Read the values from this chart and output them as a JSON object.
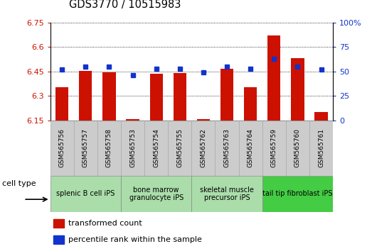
{
  "title": "GDS3770 / 10515983",
  "samples": [
    "GSM565756",
    "GSM565757",
    "GSM565758",
    "GSM565753",
    "GSM565754",
    "GSM565755",
    "GSM565762",
    "GSM565763",
    "GSM565764",
    "GSM565759",
    "GSM565760",
    "GSM565761"
  ],
  "transformed_counts": [
    6.355,
    6.455,
    6.447,
    6.16,
    6.435,
    6.443,
    6.16,
    6.465,
    6.355,
    6.67,
    6.53,
    6.2
  ],
  "percentile_ranks": [
    52,
    55,
    55,
    46,
    53,
    53,
    49,
    55,
    53,
    63,
    55,
    52
  ],
  "cell_type_groups": [
    {
      "label": "splenic B cell iPS",
      "start": 0,
      "end": 3,
      "color": "#aaddaa"
    },
    {
      "label": "bone marrow\ngranulocyte iPS",
      "start": 3,
      "end": 6,
      "color": "#aaddaa"
    },
    {
      "label": "skeletal muscle\nprecursor iPS",
      "start": 6,
      "end": 9,
      "color": "#aaddaa"
    },
    {
      "label": "tail tip fibroblast iPS",
      "start": 9,
      "end": 12,
      "color": "#44cc44"
    }
  ],
  "ylim_left": [
    6.15,
    6.75
  ],
  "ylim_right": [
    0,
    100
  ],
  "yticks_left": [
    6.15,
    6.3,
    6.45,
    6.6,
    6.75
  ],
  "ytick_labels_left": [
    "6.15",
    "6.3",
    "6.45",
    "6.6",
    "6.75"
  ],
  "yticks_right": [
    0,
    25,
    50,
    75,
    100
  ],
  "ytick_labels_right": [
    "0",
    "25",
    "50",
    "75",
    "100%"
  ],
  "bar_color": "#cc1100",
  "dot_color": "#1133cc",
  "sample_box_color": "#cccccc",
  "cell_type_label": "cell type",
  "legend_items": [
    {
      "color": "#cc1100",
      "label": "transformed count"
    },
    {
      "color": "#1133cc",
      "label": "percentile rank within the sample"
    }
  ]
}
